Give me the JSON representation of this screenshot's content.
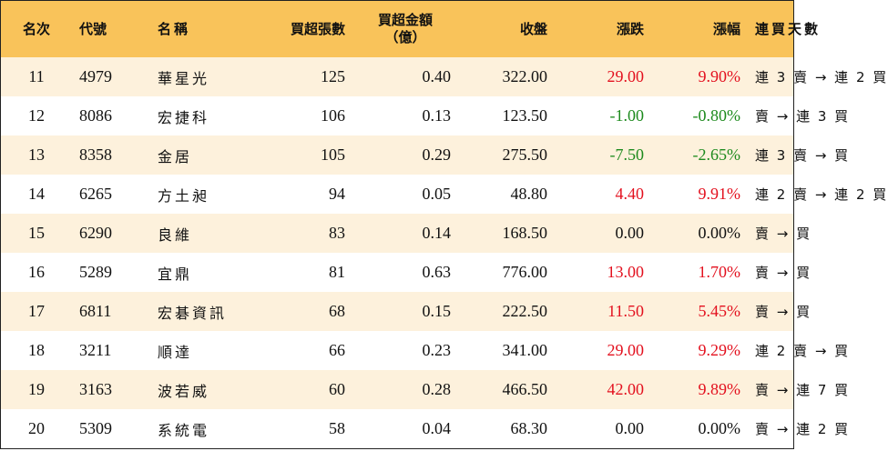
{
  "columns": {
    "rank": "名次",
    "code": "代號",
    "name": "名稱",
    "net_buy_lots": "買超張數",
    "net_buy_amount_line1": "買超金額",
    "net_buy_amount_line2": "（億）",
    "close": "收盤",
    "change": "漲跌",
    "change_pct": "漲幅",
    "consecutive_days": "連買天數"
  },
  "colors": {
    "header_bg": "#f9c35a",
    "alt_row_bg": "#fdf1dc",
    "up": "#e3101e",
    "down": "#1d8a1d"
  },
  "rows": [
    {
      "rank": "11",
      "code": "4979",
      "name": "華星光",
      "lots": "125",
      "amount": "0.40",
      "close": "322.00",
      "change": "29.00",
      "pct": "9.90%",
      "days": "連 3 賣 → 連 2 買",
      "trend": "up"
    },
    {
      "rank": "12",
      "code": "8086",
      "name": "宏捷科",
      "lots": "106",
      "amount": "0.13",
      "close": "123.50",
      "change": "-1.00",
      "pct": "-0.80%",
      "days": "賣 → 連 3 買",
      "trend": "down"
    },
    {
      "rank": "13",
      "code": "8358",
      "name": "金居",
      "lots": "105",
      "amount": "0.29",
      "close": "275.50",
      "change": "-7.50",
      "pct": "-2.65%",
      "days": "連 3 賣 → 買",
      "trend": "down"
    },
    {
      "rank": "14",
      "code": "6265",
      "name": "方土昶",
      "lots": "94",
      "amount": "0.05",
      "close": "48.80",
      "change": "4.40",
      "pct": "9.91%",
      "days": "連 2 賣 → 連 2 買",
      "trend": "up"
    },
    {
      "rank": "15",
      "code": "6290",
      "name": "良維",
      "lots": "83",
      "amount": "0.14",
      "close": "168.50",
      "change": "0.00",
      "pct": "0.00%",
      "days": "賣 → 買",
      "trend": "flat"
    },
    {
      "rank": "16",
      "code": "5289",
      "name": "宜鼎",
      "lots": "81",
      "amount": "0.63",
      "close": "776.00",
      "change": "13.00",
      "pct": "1.70%",
      "days": "賣 → 買",
      "trend": "up"
    },
    {
      "rank": "17",
      "code": "6811",
      "name": "宏碁資訊",
      "lots": "68",
      "amount": "0.15",
      "close": "222.50",
      "change": "11.50",
      "pct": "5.45%",
      "days": "賣 → 買",
      "trend": "up"
    },
    {
      "rank": "18",
      "code": "3211",
      "name": "順達",
      "lots": "66",
      "amount": "0.23",
      "close": "341.00",
      "change": "29.00",
      "pct": "9.29%",
      "days": "連 2 賣 → 買",
      "trend": "up"
    },
    {
      "rank": "19",
      "code": "3163",
      "name": "波若威",
      "lots": "60",
      "amount": "0.28",
      "close": "466.50",
      "change": "42.00",
      "pct": "9.89%",
      "days": "賣 → 連 7 買",
      "trend": "up"
    },
    {
      "rank": "20",
      "code": "5309",
      "name": "系統電",
      "lots": "58",
      "amount": "0.04",
      "close": "68.30",
      "change": "0.00",
      "pct": "0.00%",
      "days": "賣 → 連 2 買",
      "trend": "flat"
    }
  ]
}
